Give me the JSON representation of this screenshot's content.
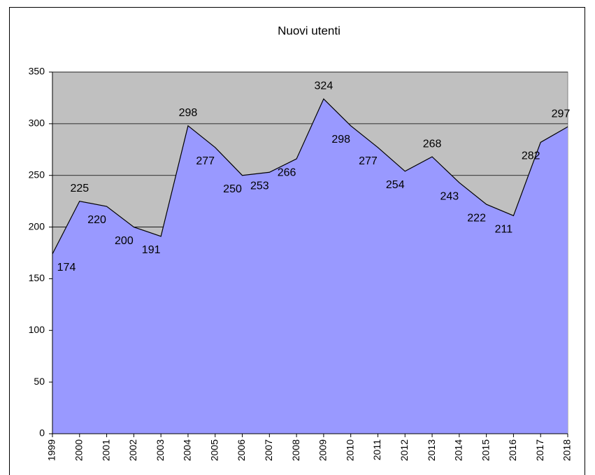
{
  "chart_data": {
    "type": "area",
    "title": "Nuovi utenti",
    "categories": [
      "1999",
      "2000",
      "2001",
      "2002",
      "2003",
      "2004",
      "2005",
      "2006",
      "2007",
      "2008",
      "2009",
      "2010",
      "2011",
      "2012",
      "2013",
      "2014",
      "2015",
      "2016",
      "2017",
      "2018"
    ],
    "values": [
      174,
      225,
      220,
      200,
      191,
      298,
      277,
      250,
      253,
      266,
      324,
      298,
      277,
      254,
      268,
      243,
      222,
      211,
      282,
      297
    ],
    "color": "#9999ff",
    "plot_background": "#c0c0c0",
    "ylim": [
      0,
      350
    ],
    "yticks": [
      0,
      50,
      100,
      150,
      200,
      250,
      300,
      350
    ],
    "grid": true
  }
}
